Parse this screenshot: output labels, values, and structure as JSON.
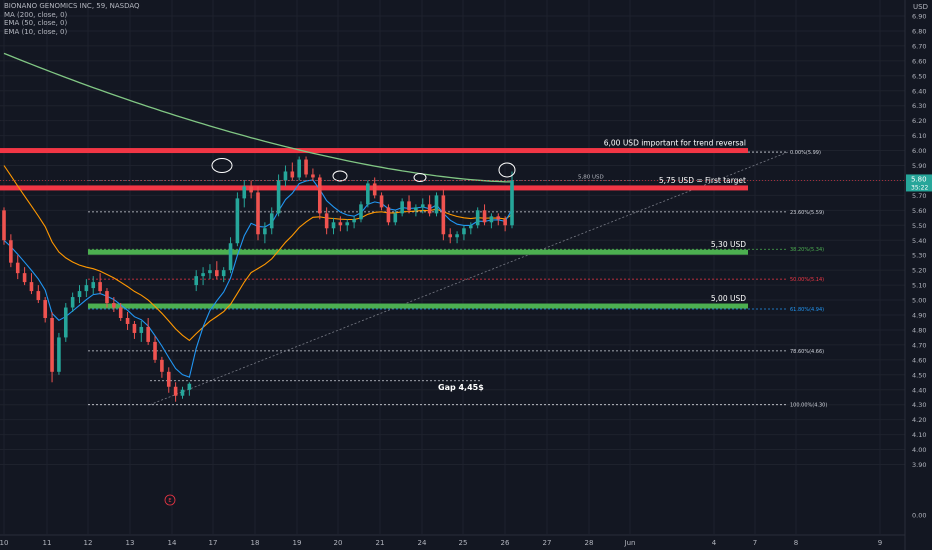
{
  "header": {
    "symbol": "BIONANO GENOMICS INC, 59, NASDAQ",
    "indicators": [
      "MA (200, close, 0)",
      "EMA (50, close, 0)",
      "EMA (10, close, 0)"
    ]
  },
  "colors": {
    "background": "#131722",
    "up": "#26a69a",
    "down": "#ef5350",
    "resistance": "#f23645",
    "support": "#4caf50",
    "ma200": "#81c784",
    "ema50": "#ff9800",
    "ema10": "#2196f3",
    "last_price": "#f23645"
  },
  "chart_data": {
    "type": "candlestick",
    "currency_label": "USD",
    "ylim": [
      0.0,
      6.9
    ],
    "y_ticks": [
      "6.90",
      "6.80",
      "6.70",
      "6.60",
      "6.50",
      "6.40",
      "6.30",
      "6.20",
      "6.10",
      "6.00",
      "5.90",
      "5.80",
      "5.70",
      "5.60",
      "5.50",
      "5.40",
      "5.30",
      "5.20",
      "5.10",
      "5.00",
      "4.90",
      "4.80",
      "4.70",
      "4.60",
      "4.50",
      "4.40",
      "4.30",
      "4.20",
      "4.10",
      "4.00",
      "3.90",
      "0.00"
    ],
    "x_ticks": [
      "10",
      "11",
      "12",
      "13",
      "14",
      "17",
      "18",
      "19",
      "20",
      "21",
      "24",
      "25",
      "26",
      "27",
      "28",
      "Jun",
      "4",
      "7",
      "8",
      "9"
    ],
    "last_price": "5.80",
    "countdown": "35:22",
    "horizontal_lines": [
      {
        "label": "6,00 USD important for trend reversal",
        "value": 6.0,
        "kind": "resistance"
      },
      {
        "label": "5,75 USD = First target",
        "value": 5.75,
        "kind": "resistance"
      },
      {
        "label": "5,30 USD",
        "value": 5.32,
        "kind": "support"
      },
      {
        "label": "5,00 USD",
        "value": 4.96,
        "kind": "support"
      }
    ],
    "fibonacci": [
      {
        "label": "0.00%(5.99)",
        "value": 5.99
      },
      {
        "label": "23.60%(5.59)",
        "value": 5.59
      },
      {
        "label": "38.20%(5.34)",
        "value": 5.34
      },
      {
        "label": "50.00%(5.14)",
        "value": 5.14
      },
      {
        "label": "61.80%(4.94)",
        "value": 4.94
      },
      {
        "label": "78.60%(4.66)",
        "value": 4.66
      },
      {
        "label": "100.00%(4.30)",
        "value": 4.3
      }
    ],
    "annotations": [
      {
        "text": "5,80 USD",
        "value": 5.8
      },
      {
        "text": "Gap 4,45$",
        "value": 4.46
      },
      {
        "text": "E"
      }
    ],
    "candles": [
      [
        5.6,
        5.62,
        5.37,
        5.4
      ],
      [
        5.4,
        5.44,
        5.22,
        5.25
      ],
      [
        5.25,
        5.3,
        5.14,
        5.18
      ],
      [
        5.18,
        5.22,
        5.1,
        5.12
      ],
      [
        5.12,
        5.18,
        5.04,
        5.06
      ],
      [
        5.06,
        5.1,
        4.98,
        5.0
      ],
      [
        5.0,
        5.02,
        4.85,
        4.88
      ],
      [
        4.88,
        4.92,
        4.45,
        4.52
      ],
      [
        4.52,
        4.78,
        4.5,
        4.75
      ],
      [
        4.75,
        4.98,
        4.72,
        4.95
      ],
      [
        4.95,
        5.05,
        4.92,
        5.02
      ],
      [
        5.02,
        5.1,
        4.98,
        5.06
      ],
      [
        5.06,
        5.14,
        5.02,
        5.1
      ],
      [
        5.08,
        5.16,
        5.04,
        5.12
      ],
      [
        5.12,
        5.18,
        5.04,
        5.06
      ],
      [
        5.06,
        5.08,
        4.95,
        4.98
      ],
      [
        4.98,
        5.02,
        4.92,
        4.95
      ],
      [
        4.95,
        4.98,
        4.86,
        4.88
      ],
      [
        4.88,
        4.92,
        4.8,
        4.84
      ],
      [
        4.84,
        4.86,
        4.74,
        4.78
      ],
      [
        4.78,
        4.86,
        4.72,
        4.82
      ],
      [
        4.82,
        4.88,
        4.7,
        4.72
      ],
      [
        4.72,
        4.76,
        4.58,
        4.6
      ],
      [
        4.6,
        4.62,
        4.48,
        4.52
      ],
      [
        4.52,
        4.55,
        4.38,
        4.42
      ],
      [
        4.42,
        4.45,
        4.32,
        4.36
      ],
      [
        4.36,
        4.42,
        4.34,
        4.4
      ],
      [
        4.4,
        4.45,
        4.36,
        4.44
      ],
      [
        5.1,
        5.2,
        5.06,
        5.16
      ],
      [
        5.16,
        5.22,
        5.1,
        5.18
      ],
      [
        5.18,
        5.24,
        5.14,
        5.2
      ],
      [
        5.2,
        5.26,
        5.14,
        5.16
      ],
      [
        5.16,
        5.22,
        5.12,
        5.2
      ],
      [
        5.2,
        5.42,
        5.18,
        5.38
      ],
      [
        5.38,
        5.72,
        5.36,
        5.68
      ],
      [
        5.68,
        5.8,
        5.62,
        5.76
      ],
      [
        5.76,
        5.8,
        5.68,
        5.72
      ],
      [
        5.72,
        5.76,
        5.4,
        5.44
      ],
      [
        5.44,
        5.52,
        5.38,
        5.48
      ],
      [
        5.48,
        5.62,
        5.44,
        5.58
      ],
      [
        5.58,
        5.84,
        5.56,
        5.8
      ],
      [
        5.8,
        5.9,
        5.76,
        5.86
      ],
      [
        5.86,
        5.92,
        5.8,
        5.82
      ],
      [
        5.82,
        5.96,
        5.8,
        5.94
      ],
      [
        5.94,
        5.96,
        5.82,
        5.84
      ],
      [
        5.84,
        5.88,
        5.8,
        5.82
      ],
      [
        5.82,
        5.84,
        5.54,
        5.58
      ],
      [
        5.58,
        5.62,
        5.44,
        5.48
      ],
      [
        5.48,
        5.55,
        5.44,
        5.52
      ],
      [
        5.52,
        5.56,
        5.46,
        5.5
      ],
      [
        5.5,
        5.54,
        5.46,
        5.52
      ],
      [
        5.52,
        5.56,
        5.48,
        5.54
      ],
      [
        5.54,
        5.66,
        5.52,
        5.64
      ],
      [
        5.64,
        5.8,
        5.62,
        5.78
      ],
      [
        5.78,
        5.82,
        5.68,
        5.7
      ],
      [
        5.7,
        5.72,
        5.6,
        5.62
      ],
      [
        5.62,
        5.64,
        5.5,
        5.52
      ],
      [
        5.52,
        5.6,
        5.5,
        5.58
      ],
      [
        5.58,
        5.68,
        5.56,
        5.66
      ],
      [
        5.66,
        5.7,
        5.58,
        5.6
      ],
      [
        5.6,
        5.64,
        5.56,
        5.62
      ],
      [
        5.62,
        5.68,
        5.58,
        5.64
      ],
      [
        5.64,
        5.7,
        5.56,
        5.58
      ],
      [
        5.58,
        5.72,
        5.56,
        5.7
      ],
      [
        5.7,
        5.74,
        5.4,
        5.44
      ],
      [
        5.44,
        5.48,
        5.38,
        5.42
      ],
      [
        5.42,
        5.46,
        5.38,
        5.44
      ],
      [
        5.44,
        5.5,
        5.4,
        5.48
      ],
      [
        5.48,
        5.52,
        5.44,
        5.5
      ],
      [
        5.5,
        5.62,
        5.48,
        5.6
      ],
      [
        5.6,
        5.64,
        5.5,
        5.52
      ],
      [
        5.52,
        5.58,
        5.48,
        5.56
      ],
      [
        5.56,
        5.58,
        5.5,
        5.54
      ],
      [
        5.54,
        5.56,
        5.46,
        5.5
      ],
      [
        5.5,
        5.86,
        5.48,
        5.8
      ]
    ]
  }
}
